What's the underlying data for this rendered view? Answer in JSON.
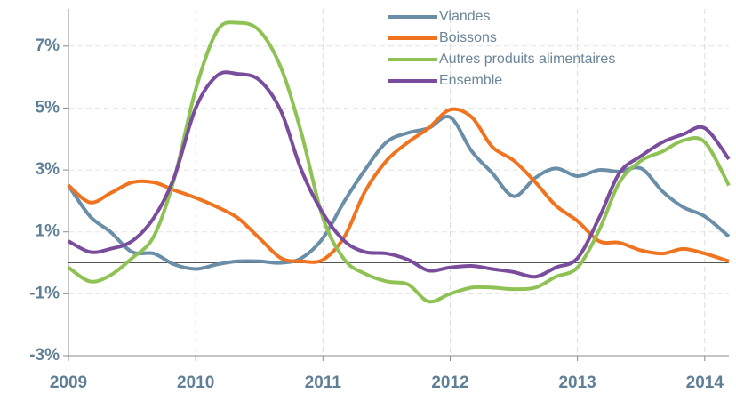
{
  "chart_data": {
    "type": "line",
    "x": [
      2009,
      2009.17,
      2009.33,
      2009.5,
      2009.67,
      2009.83,
      2010,
      2010.17,
      2010.33,
      2010.5,
      2010.67,
      2010.83,
      2011,
      2011.17,
      2011.33,
      2011.5,
      2011.67,
      2011.83,
      2012,
      2012.17,
      2012.33,
      2012.5,
      2012.67,
      2012.83,
      2013,
      2013.17,
      2013.33,
      2013.5,
      2013.67,
      2013.83,
      2014,
      2014.19
    ],
    "series": [
      {
        "name": "Viandes",
        "color": "#6a8ea8",
        "values": [
          2.5,
          1.5,
          1.0,
          0.35,
          0.3,
          -0.05,
          -0.2,
          -0.05,
          0.05,
          0.05,
          0.0,
          0.15,
          0.8,
          2.0,
          3.0,
          3.9,
          4.2,
          4.35,
          4.7,
          3.6,
          2.9,
          2.15,
          2.75,
          3.05,
          2.8,
          3.0,
          2.95,
          3.05,
          2.3,
          1.8,
          1.5,
          0.85
        ]
      },
      {
        "name": "Boissons",
        "color": "#f07320",
        "values": [
          2.5,
          1.95,
          2.25,
          2.6,
          2.6,
          2.35,
          2.1,
          1.8,
          1.45,
          0.8,
          0.15,
          0.05,
          0.1,
          0.85,
          2.3,
          3.3,
          3.9,
          4.35,
          4.95,
          4.7,
          3.75,
          3.3,
          2.6,
          1.85,
          1.35,
          0.7,
          0.65,
          0.4,
          0.3,
          0.45,
          0.3,
          0.05
        ]
      },
      {
        "name": "Autres produits alimentaires",
        "color": "#8fc254",
        "values": [
          -0.15,
          -0.6,
          -0.4,
          0.15,
          0.85,
          2.7,
          5.6,
          7.5,
          7.75,
          7.5,
          6.3,
          4.2,
          1.45,
          0.1,
          -0.35,
          -0.6,
          -0.7,
          -1.25,
          -1.0,
          -0.8,
          -0.8,
          -0.85,
          -0.8,
          -0.45,
          -0.15,
          1.05,
          2.6,
          3.3,
          3.6,
          3.95,
          3.9,
          2.5
        ]
      },
      {
        "name": "Ensemble",
        "color": "#7a4c9c",
        "values": [
          0.7,
          0.35,
          0.45,
          0.7,
          1.45,
          2.75,
          5.0,
          6.05,
          6.1,
          5.9,
          4.9,
          3.0,
          1.6,
          0.7,
          0.35,
          0.3,
          0.1,
          -0.25,
          -0.15,
          -0.1,
          -0.2,
          -0.3,
          -0.45,
          -0.15,
          0.15,
          1.45,
          2.9,
          3.45,
          3.9,
          4.15,
          4.35,
          3.35
        ]
      }
    ],
    "xlim": [
      2009,
      2014.19
    ],
    "xticks": [
      2009,
      2010,
      2011,
      2012,
      2013,
      2014
    ],
    "ylim": [
      -3,
      8.2
    ],
    "yticks": [
      {
        "value": -3,
        "label": "-3%"
      },
      {
        "value": -1,
        "label": "-1%"
      },
      {
        "value": 1,
        "label": "1%"
      },
      {
        "value": 3,
        "label": "3%"
      },
      {
        "value": 5,
        "label": "5%"
      },
      {
        "value": 7,
        "label": "7%"
      }
    ],
    "grid": true
  }
}
